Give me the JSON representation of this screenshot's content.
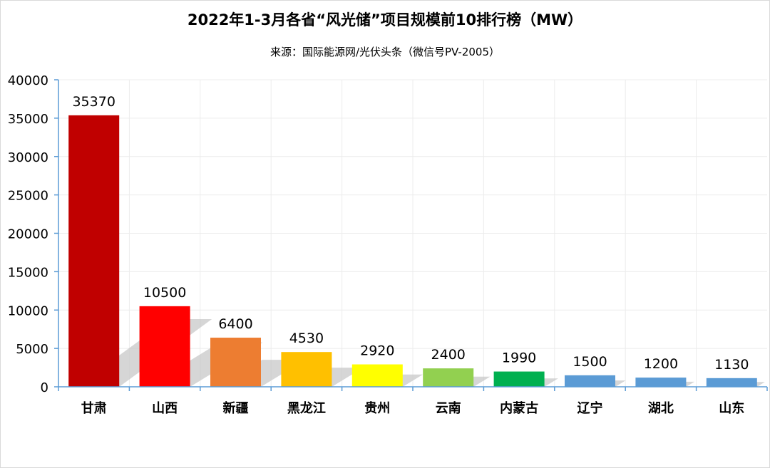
{
  "chart_data": {
    "type": "bar",
    "title": "2022年1-3月各省“风光储”项目规模前10排行榜（MW）",
    "subtitle": "来源：国际能源网/光伏头条（微信号PV-2005）",
    "xlabel": "",
    "ylabel": "",
    "categories": [
      "甘肃",
      "山西",
      "新疆",
      "黑龙江",
      "贵州",
      "云南",
      "内蒙古",
      "辽宁",
      "湖北",
      "山东"
    ],
    "values": [
      35370,
      10500,
      6400,
      4530,
      2920,
      2400,
      1990,
      1500,
      1200,
      1130
    ],
    "data_labels": [
      "35370",
      "10500",
      "6400",
      "4530",
      "2920",
      "2400",
      "1990",
      "1500",
      "1200",
      "1130"
    ],
    "ylim": [
      0,
      40000
    ],
    "yticks": [
      0,
      5000,
      10000,
      15000,
      20000,
      25000,
      30000,
      35000,
      40000
    ],
    "ytick_labels": [
      "0",
      "5000",
      "10000",
      "15000",
      "20000",
      "25000",
      "30000",
      "35000",
      "40000"
    ],
    "grid": true,
    "legend": "none",
    "bar_colors": [
      "#c00000",
      "#ff0000",
      "#ed7d31",
      "#ffc000",
      "#ffff00",
      "#92d050",
      "#00b050",
      "#5b9bd5",
      "#5b9bd5",
      "#5b9bd5"
    ],
    "grid_color": "#ececec",
    "axis_color": "#5b9bd5",
    "shadow_color": "#c8c8c8"
  }
}
